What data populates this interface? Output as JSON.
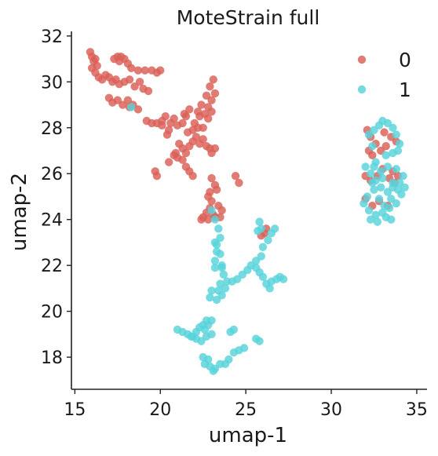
{
  "chart_data": {
    "type": "scatter",
    "title": "MoteStrain full",
    "xlabel": "umap-1",
    "ylabel": "umap-2",
    "xlim": [
      14.8,
      35.6
    ],
    "ylim": [
      16.6,
      32.2
    ],
    "xticks": [
      15,
      20,
      25,
      30,
      35
    ],
    "yticks": [
      18,
      20,
      22,
      24,
      26,
      28,
      30,
      32
    ],
    "grid": false,
    "legend_position": "top-right",
    "series": [
      {
        "name": "0",
        "color": "#db5f57",
        "points": [
          [
            15.9,
            31.3
          ],
          [
            16.0,
            31.1
          ],
          [
            16.1,
            30.9
          ],
          [
            16.2,
            31.0
          ],
          [
            16.3,
            30.7
          ],
          [
            16.0,
            30.6
          ],
          [
            16.2,
            30.4
          ],
          [
            16.4,
            30.2
          ],
          [
            16.6,
            30.1
          ],
          [
            16.8,
            30.3
          ],
          [
            17.0,
            30.2
          ],
          [
            17.2,
            30.0
          ],
          [
            17.4,
            30.1
          ],
          [
            17.6,
            29.9
          ],
          [
            17.9,
            30.0
          ],
          [
            18.2,
            30.1
          ],
          [
            18.5,
            29.8
          ],
          [
            18.8,
            30.0
          ],
          [
            19.0,
            29.7
          ],
          [
            19.3,
            29.6
          ],
          [
            17.3,
            31.0
          ],
          [
            17.5,
            31.1
          ],
          [
            17.7,
            31.1
          ],
          [
            17.9,
            31.0
          ],
          [
            18.1,
            30.8
          ],
          [
            17.6,
            30.9
          ],
          [
            18.3,
            30.6
          ],
          [
            18.7,
            30.5
          ],
          [
            19.1,
            30.5
          ],
          [
            19.5,
            30.5
          ],
          [
            19.8,
            30.4
          ],
          [
            20.0,
            30.5
          ],
          [
            17.0,
            29.3
          ],
          [
            17.2,
            29.1
          ],
          [
            17.5,
            29.2
          ],
          [
            17.8,
            29.0
          ],
          [
            18.1,
            29.2
          ],
          [
            18.4,
            29.0
          ],
          [
            18.7,
            28.8
          ],
          [
            18.2,
            28.9
          ],
          [
            19.2,
            28.3
          ],
          [
            19.5,
            28.2
          ],
          [
            19.8,
            28.2
          ],
          [
            20.1,
            28.3
          ],
          [
            20.3,
            28.5
          ],
          [
            20.1,
            28.1
          ],
          [
            20.5,
            27.9
          ],
          [
            20.6,
            28.2
          ],
          [
            20.4,
            27.7
          ],
          [
            20.8,
            28.4
          ],
          [
            21.0,
            28.1
          ],
          [
            21.3,
            28.2
          ],
          [
            21.5,
            28.5
          ],
          [
            21.7,
            28.8
          ],
          [
            21.4,
            28.6
          ],
          [
            22.0,
            28.2
          ],
          [
            22.3,
            28.5
          ],
          [
            22.6,
            28.6
          ],
          [
            22.8,
            28.4
          ],
          [
            23.0,
            28.7
          ],
          [
            21.1,
            27.3
          ],
          [
            21.3,
            27.1
          ],
          [
            21.5,
            26.9
          ],
          [
            21.7,
            27.2
          ],
          [
            21.9,
            27.4
          ],
          [
            22.1,
            27.6
          ],
          [
            22.3,
            27.3
          ],
          [
            22.5,
            27.5
          ],
          [
            22.7,
            27.2
          ],
          [
            22.9,
            27.1
          ],
          [
            21.6,
            27.8
          ],
          [
            21.9,
            27.9
          ],
          [
            22.2,
            28.0
          ],
          [
            22.5,
            28.0
          ],
          [
            20.5,
            26.5
          ],
          [
            20.8,
            26.8
          ],
          [
            21.0,
            26.7
          ],
          [
            20.9,
            26.9
          ],
          [
            19.7,
            26.1
          ],
          [
            19.8,
            25.9
          ],
          [
            21.3,
            26.6
          ],
          [
            21.5,
            26.3
          ],
          [
            21.7,
            26.1
          ],
          [
            21.9,
            25.9
          ],
          [
            23.0,
            29.2
          ],
          [
            23.2,
            29.5
          ],
          [
            22.9,
            29.8
          ],
          [
            23.1,
            30.1
          ],
          [
            22.7,
            29.4
          ],
          [
            22.4,
            29.0
          ],
          [
            22.2,
            28.7
          ],
          [
            22.8,
            28.9
          ],
          [
            23.0,
            26.9
          ],
          [
            23.2,
            27.1
          ],
          [
            23.0,
            25.8
          ],
          [
            23.2,
            25.5
          ],
          [
            22.9,
            25.2
          ],
          [
            22.8,
            25.0
          ],
          [
            23.0,
            24.8
          ],
          [
            22.9,
            24.5
          ],
          [
            22.7,
            24.3
          ],
          [
            22.5,
            24.1
          ],
          [
            22.4,
            24.0
          ],
          [
            22.8,
            24.0
          ],
          [
            23.1,
            24.2
          ],
          [
            23.4,
            24.6
          ],
          [
            23.6,
            24.4
          ],
          [
            23.3,
            25.3
          ],
          [
            24.6,
            25.6
          ],
          [
            24.4,
            25.9
          ],
          [
            23.5,
            24.1
          ],
          [
            23.2,
            24.1
          ],
          [
            25.9,
            23.3
          ],
          [
            26.1,
            23.4
          ],
          [
            26.2,
            23.6
          ],
          [
            32.1,
            27.9
          ],
          [
            32.3,
            27.6
          ],
          [
            32.6,
            27.3
          ],
          [
            32.9,
            27.0
          ],
          [
            33.2,
            27.2
          ],
          [
            33.5,
            27.6
          ],
          [
            33.8,
            27.4
          ],
          [
            32.2,
            27.0
          ],
          [
            32.4,
            26.8
          ],
          [
            33.1,
            27.8
          ],
          [
            32.0,
            25.9
          ],
          [
            32.3,
            25.7
          ],
          [
            32.7,
            25.9
          ],
          [
            33.0,
            26.2
          ],
          [
            33.4,
            25.8
          ],
          [
            33.7,
            25.6
          ],
          [
            33.9,
            25.9
          ],
          [
            32.0,
            24.9
          ],
          [
            32.8,
            24.8
          ],
          [
            33.3,
            24.6
          ],
          [
            32.4,
            24.6
          ],
          [
            33.6,
            26.1
          ]
        ]
      },
      {
        "name": "1",
        "color": "#57d3db",
        "points": [
          [
            18.3,
            28.9
          ],
          [
            23.0,
            24.4
          ],
          [
            23.2,
            24.0
          ],
          [
            23.4,
            23.6
          ],
          [
            23.5,
            23.2
          ],
          [
            23.3,
            22.9
          ],
          [
            23.5,
            22.5
          ],
          [
            23.6,
            22.0
          ],
          [
            23.2,
            22.2
          ],
          [
            23.2,
            21.9
          ],
          [
            23.7,
            21.6
          ],
          [
            23.9,
            21.3
          ],
          [
            23.5,
            21.2
          ],
          [
            23.4,
            20.9
          ],
          [
            23.0,
            20.9
          ],
          [
            22.9,
            20.6
          ],
          [
            23.3,
            20.5
          ],
          [
            23.6,
            20.7
          ],
          [
            23.8,
            21.0
          ],
          [
            24.2,
            21.3
          ],
          [
            24.5,
            21.4
          ],
          [
            24.8,
            21.6
          ],
          [
            25.1,
            21.8
          ],
          [
            25.3,
            22.0
          ],
          [
            25.6,
            22.2
          ],
          [
            25.9,
            22.4
          ],
          [
            26.0,
            22.8
          ],
          [
            26.3,
            23.1
          ],
          [
            26.5,
            23.4
          ],
          [
            26.7,
            23.6
          ],
          [
            25.8,
            21.7
          ],
          [
            26.0,
            21.5
          ],
          [
            26.2,
            21.2
          ],
          [
            26.4,
            21.0
          ],
          [
            26.5,
            21.3
          ],
          [
            26.8,
            21.4
          ],
          [
            27.0,
            21.5
          ],
          [
            27.2,
            21.4
          ],
          [
            25.7,
            23.5
          ],
          [
            25.8,
            23.9
          ],
          [
            25.9,
            23.6
          ],
          [
            25.6,
            21.9
          ],
          [
            23.2,
            23.0
          ],
          [
            23.3,
            22.6
          ],
          [
            23.6,
            21.9
          ],
          [
            21.0,
            19.2
          ],
          [
            21.3,
            19.1
          ],
          [
            21.6,
            19.0
          ],
          [
            21.9,
            18.9
          ],
          [
            22.1,
            19.1
          ],
          [
            22.3,
            19.3
          ],
          [
            22.5,
            19.4
          ],
          [
            22.7,
            19.6
          ],
          [
            23.0,
            19.6
          ],
          [
            22.8,
            19.4
          ],
          [
            22.6,
            19.2
          ],
          [
            21.8,
            18.9
          ],
          [
            22.1,
            18.8
          ],
          [
            22.4,
            18.7
          ],
          [
            22.7,
            18.9
          ],
          [
            23.0,
            19.0
          ],
          [
            24.1,
            19.1
          ],
          [
            24.3,
            19.2
          ],
          [
            22.5,
            18.0
          ],
          [
            22.6,
            17.7
          ],
          [
            22.9,
            17.6
          ],
          [
            23.2,
            17.5
          ],
          [
            23.5,
            17.7
          ],
          [
            23.8,
            17.7
          ],
          [
            24.0,
            17.9
          ],
          [
            22.8,
            17.9
          ],
          [
            23.1,
            17.4
          ],
          [
            24.6,
            18.3
          ],
          [
            24.9,
            18.4
          ],
          [
            24.3,
            18.2
          ],
          [
            25.6,
            18.8
          ],
          [
            25.8,
            18.7
          ],
          [
            33.0,
            28.3
          ],
          [
            33.3,
            28.2
          ],
          [
            33.6,
            28.0
          ],
          [
            33.8,
            27.7
          ],
          [
            34.0,
            27.3
          ],
          [
            33.9,
            27.0
          ],
          [
            32.2,
            27.7
          ],
          [
            32.5,
            27.9
          ],
          [
            32.8,
            28.1
          ],
          [
            32.4,
            27.2
          ],
          [
            33.2,
            26.8
          ],
          [
            33.6,
            26.9
          ],
          [
            32.0,
            26.3
          ],
          [
            32.3,
            26.0
          ],
          [
            32.6,
            25.7
          ],
          [
            32.9,
            25.4
          ],
          [
            33.3,
            25.2
          ],
          [
            33.6,
            25.4
          ],
          [
            34.0,
            25.6
          ],
          [
            34.3,
            25.4
          ],
          [
            34.1,
            25.1
          ],
          [
            33.8,
            24.7
          ],
          [
            33.4,
            24.5
          ],
          [
            33.0,
            24.3
          ],
          [
            32.6,
            24.2
          ],
          [
            32.2,
            24.4
          ],
          [
            31.9,
            24.7
          ],
          [
            32.1,
            25.0
          ],
          [
            32.5,
            25.3
          ],
          [
            32.8,
            24.9
          ],
          [
            33.1,
            24.6
          ],
          [
            33.5,
            24.9
          ],
          [
            33.9,
            25.3
          ],
          [
            34.2,
            25.9
          ],
          [
            33.8,
            26.2
          ],
          [
            33.3,
            26.3
          ],
          [
            32.9,
            26.1
          ],
          [
            32.5,
            26.3
          ],
          [
            32.3,
            24.0
          ],
          [
            32.7,
            23.9
          ],
          [
            33.2,
            24.1
          ],
          [
            33.5,
            24.0
          ],
          [
            32.4,
            25.6
          ],
          [
            33.0,
            25.8
          ],
          [
            33.6,
            25.6
          ],
          [
            32.6,
            26.5
          ]
        ]
      }
    ]
  }
}
